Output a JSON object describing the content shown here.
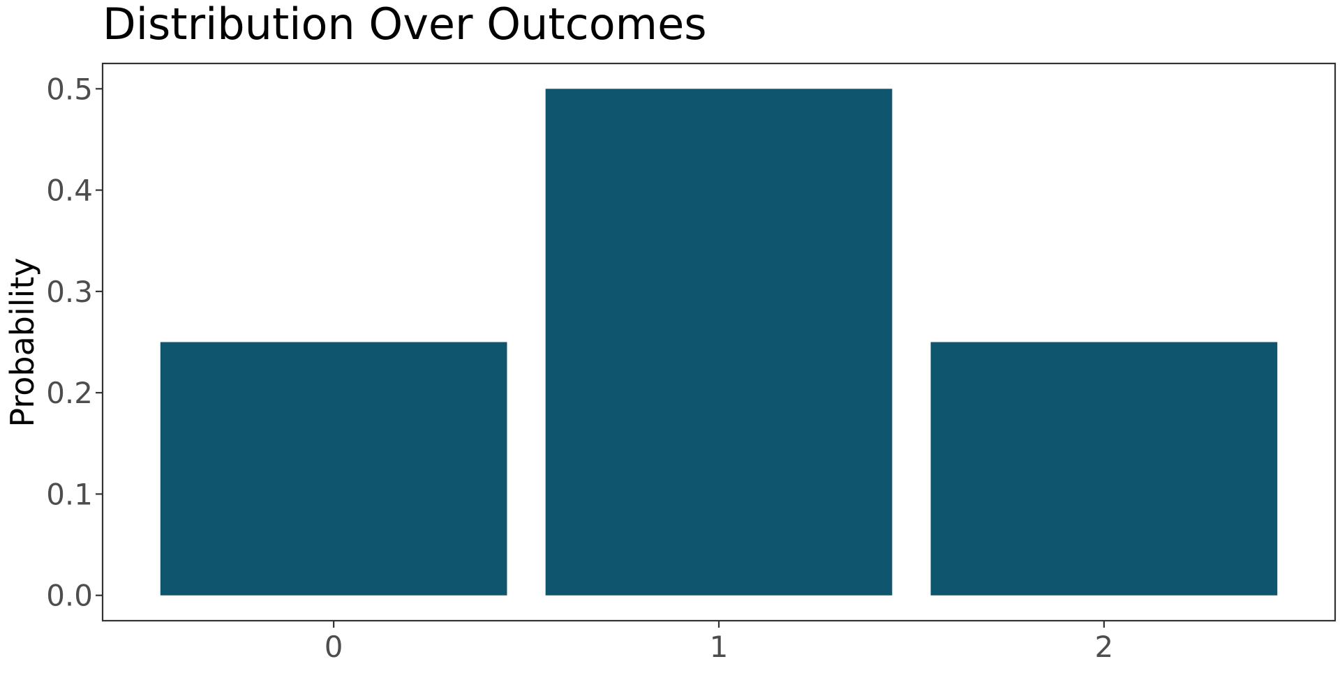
{
  "chart_data": {
    "type": "bar",
    "title": "Distribution Over Outcomes",
    "xlabel": "",
    "ylabel": "Probability",
    "categories": [
      "0",
      "1",
      "2"
    ],
    "values": [
      0.25,
      0.5,
      0.25
    ],
    "ylim": [
      -0.025,
      0.525
    ],
    "yticks": [
      0.0,
      0.1,
      0.2,
      0.3,
      0.4,
      0.5
    ],
    "ytick_labels": [
      "0.0",
      "0.1",
      "0.2",
      "0.3",
      "0.4",
      "0.5"
    ],
    "grid": false,
    "legend": "none",
    "bar_color": "#0f556d"
  }
}
